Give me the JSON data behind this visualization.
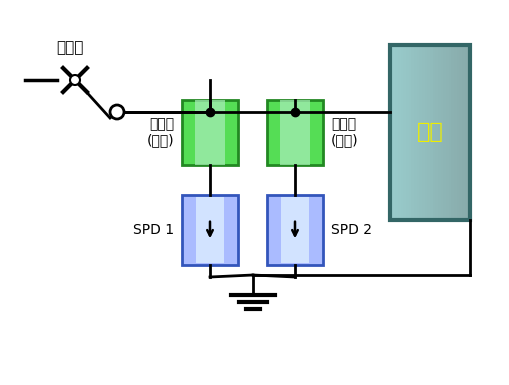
{
  "bg_color": "#ffffff",
  "line_color": "#000000",
  "line_width": 2.0,
  "fuse_color": "#55dd55",
  "fuse_border": "#228822",
  "spd_fill": "#8899ee",
  "spd_border": "#3355bb",
  "load_color_left": "#aacccc",
  "load_color_right": "#88aaaa",
  "load_border": "#336666",
  "load_text": "부하",
  "load_text_color": "#eeee00",
  "label_breaker": "차단기",
  "label_fuse1": "분리기\n(풨즈)",
  "label_fuse2": "분리기\n(풨즈)",
  "label_spd1": "SPD 1",
  "label_spd2": "SPD 2"
}
